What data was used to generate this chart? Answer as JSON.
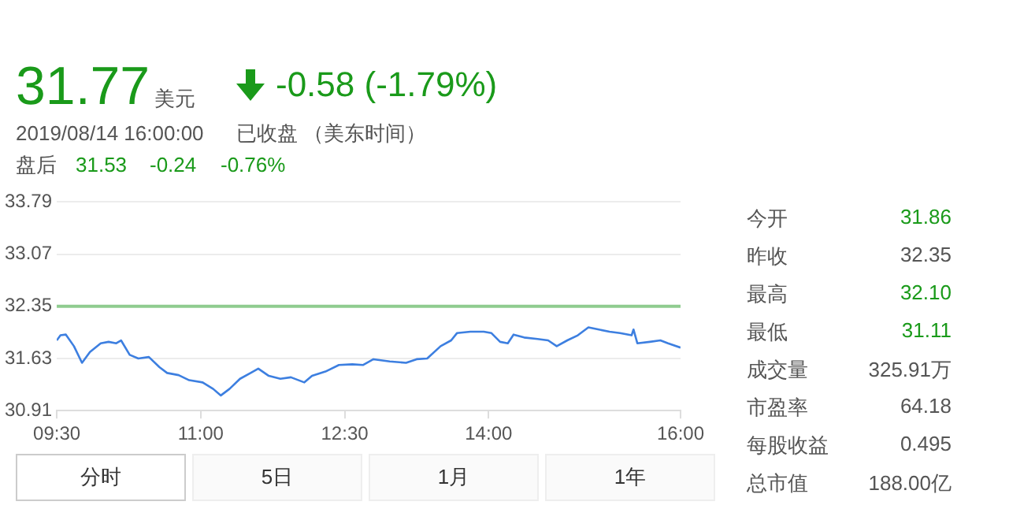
{
  "chart_data": [
    {
      "type": "line",
      "x": [
        9.5,
        9.539,
        9.595,
        9.679,
        9.763,
        9.846,
        9.958,
        10.04,
        10.12,
        10.17,
        10.26,
        10.35,
        10.46,
        10.57,
        10.65,
        10.77,
        10.88,
        11.02,
        11.13,
        11.21,
        11.3,
        11.41,
        11.52,
        11.6,
        11.71,
        11.83,
        11.94,
        12.08,
        12.16,
        12.3,
        12.44,
        12.58,
        12.69,
        12.8,
        12.97,
        13.14,
        13.25,
        13.36,
        13.5,
        13.61,
        13.67,
        13.81,
        13.95,
        14.03,
        14.12,
        14.2,
        14.26,
        14.37,
        14.51,
        14.62,
        14.71,
        14.82,
        14.93,
        15.04,
        15.15,
        15.26,
        15.37,
        15.49,
        15.51,
        15.55,
        15.68,
        15.79,
        15.87,
        16.0
      ],
      "series": [
        {
          "color": "#3d7fe0",
          "values": [
            31.88,
            31.95,
            31.96,
            31.8,
            31.57,
            31.72,
            31.84,
            31.86,
            31.84,
            31.88,
            31.68,
            31.63,
            31.65,
            31.51,
            31.43,
            31.4,
            31.33,
            31.3,
            31.21,
            31.12,
            31.21,
            31.35,
            31.43,
            31.49,
            31.39,
            31.35,
            31.37,
            31.3,
            31.39,
            31.45,
            31.54,
            31.55,
            31.54,
            31.62,
            31.59,
            31.57,
            31.62,
            31.63,
            31.8,
            31.88,
            31.98,
            32.0,
            32.0,
            31.98,
            31.86,
            31.84,
            31.96,
            31.92,
            31.9,
            31.88,
            31.8,
            31.88,
            31.95,
            32.06,
            32.03,
            32.0,
            31.98,
            31.95,
            32.03,
            31.84,
            31.86,
            31.88,
            31.84,
            31.78
          ]
        }
      ],
      "xlim": [
        9.5,
        16.0
      ],
      "xticks": [
        {
          "value": 9.5,
          "label": "09:30"
        },
        {
          "value": 11,
          "label": "11:00"
        },
        {
          "value": 12.5,
          "label": "12:30"
        },
        {
          "value": 14,
          "label": "14:00"
        },
        {
          "value": 16,
          "label": "16:00"
        }
      ],
      "ylim": [
        30.91,
        33.79
      ],
      "yticks": [
        30.91,
        31.63,
        32.35,
        33.07,
        33.79
      ],
      "grid": "y",
      "legend": false,
      "marker": "none",
      "line_style": "solid",
      "ref_lines": [
        {
          "axis": "y",
          "value": 32.35,
          "color": "#8fcc8f"
        }
      ]
    },
    {
      "type": "other",
      "annotations": [
        "31.77",
        "美元",
        "-0.58 (-1.79%)",
        "2019/08/14 16:00:00",
        "已收盘 （美东时间）",
        "盘后",
        "31.53",
        "-0.24",
        "-0.76%",
        "今开",
        "31.86",
        "昨收",
        "32.35",
        "最高",
        "32.10",
        "最低",
        "31.11",
        "成交量",
        "325.91万",
        "市盈率",
        "64.18",
        "每股收益",
        "0.495",
        "总市值",
        "188.00亿",
        "分时",
        "5日",
        "1月",
        "1年"
      ]
    }
  ]
}
